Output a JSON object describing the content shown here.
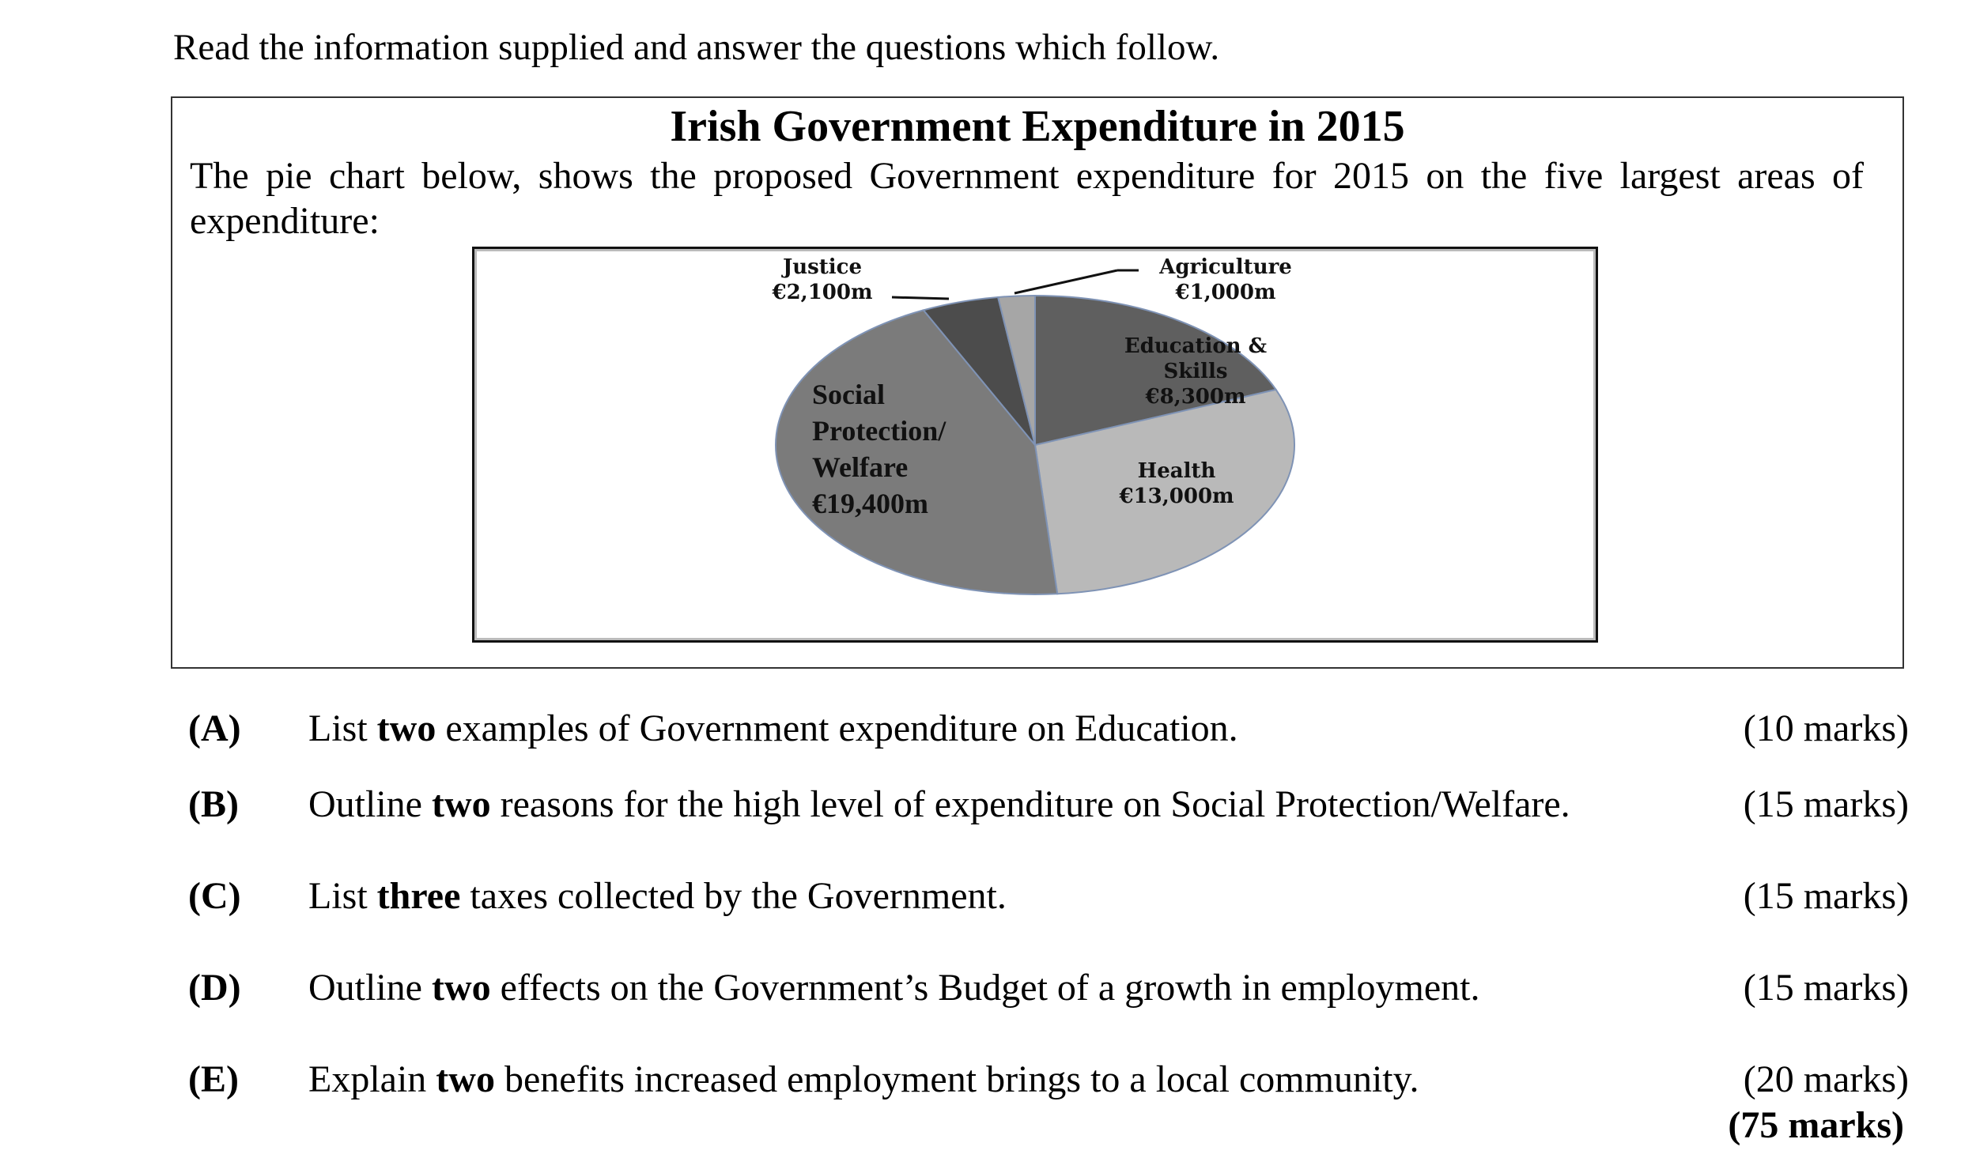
{
  "instruction": "Read the information supplied and answer the questions which follow.",
  "chart_data": {
    "type": "pie",
    "title": "Irish Government Expenditure in 2015",
    "subtitle": "The pie chart below, shows the proposed Government expenditure for 2015 on the five largest areas of expenditure:",
    "categories": [
      "Education & Skills",
      "Health",
      "Social Protection/ Welfare",
      "Justice",
      "Agriculture"
    ],
    "values": [
      8300,
      13000,
      19400,
      2100,
      1000
    ],
    "value_labels": [
      "€8,300m",
      "€13,000m",
      "€19,400m",
      "€2,100m",
      "€1,000m"
    ],
    "colors": [
      "#5f5f5f",
      "#b9b9b9",
      "#7b7b7b",
      "#4c4c4c",
      "#a6a6a6"
    ]
  },
  "questions": [
    {
      "letter": "(A)",
      "before": "List ",
      "bold": "two",
      "after": " examples of Government expenditure on Education.",
      "marks": "(10 marks)"
    },
    {
      "letter": "(B)",
      "before": "Outline ",
      "bold": "two",
      "after": " reasons for the high level of expenditure on Social Protection/Welfare.",
      "marks": "(15 marks)"
    },
    {
      "letter": "(C)",
      "before": "List ",
      "bold": "three",
      "after": " taxes collected by the Government.",
      "marks": "(15 marks)"
    },
    {
      "letter": "(D)",
      "before": "Outline ",
      "bold": "two",
      "after": " effects on the Government’s Budget of a growth in employment.",
      "marks": "(15 marks)"
    },
    {
      "letter": "(E)",
      "before": "Explain ",
      "bold": "two",
      "after": " benefits increased employment brings to a local community.",
      "marks": "(20 marks)"
    }
  ],
  "total": "(75 marks)"
}
